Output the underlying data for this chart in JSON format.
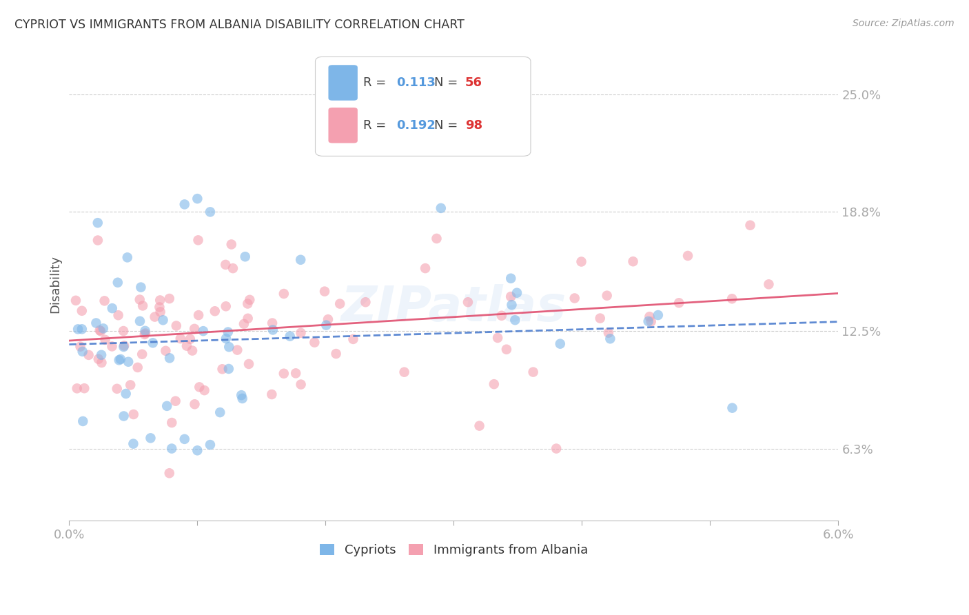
{
  "title": "CYPRIOT VS IMMIGRANTS FROM ALBANIA DISABILITY CORRELATION CHART",
  "source": "Source: ZipAtlas.com",
  "ylabel": "Disability",
  "ytick_values": [
    0.063,
    0.125,
    0.188,
    0.25
  ],
  "ytick_labels": [
    "6.3%",
    "12.5%",
    "18.8%",
    "25.0%"
  ],
  "xmin": 0.0,
  "xmax": 0.06,
  "ymin": 0.025,
  "ymax": 0.275,
  "r_cypriot": 0.113,
  "n_cypriot": 56,
  "r_albania": 0.192,
  "n_albania": 98,
  "color_cypriot": "#7EB6E8",
  "color_albania": "#F4A0B0",
  "color_trend_cypriot": "#4477CC",
  "color_trend_albania": "#E05070",
  "watermark": "ZIPatlas",
  "legend_r_color": "#5599DD",
  "legend_n_color": "#DD3333",
  "grid_color": "#CCCCCC",
  "background_color": "#FFFFFF",
  "title_color": "#333333",
  "source_color": "#999999",
  "axis_label_color": "#5599DD"
}
